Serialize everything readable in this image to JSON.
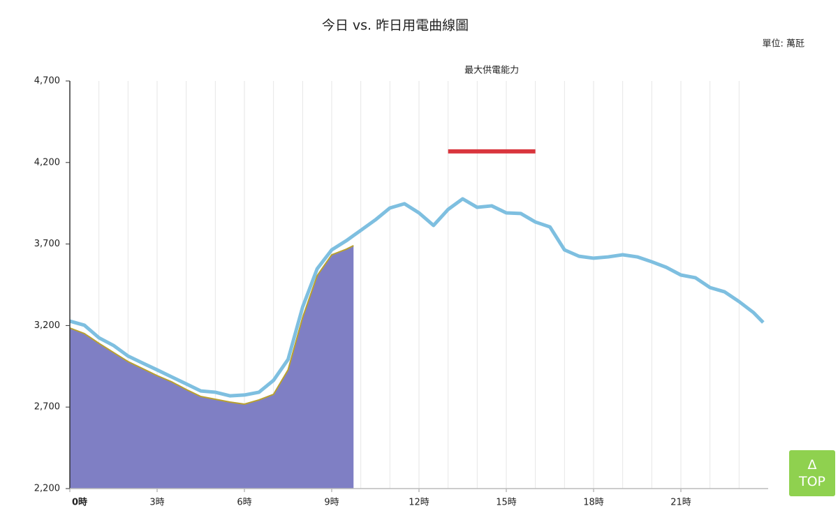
{
  "chart_data": {
    "type": "line",
    "title": "今日 vs. 昨日用電曲線圖",
    "unit_label": "單位: 萬瓩",
    "xlim": [
      0,
      24
    ],
    "ylim": [
      2200,
      4700
    ],
    "xticks": [
      {
        "value": 0,
        "label": "0時"
      },
      {
        "value": 3,
        "label": "3時"
      },
      {
        "value": 6,
        "label": "6時"
      },
      {
        "value": 9,
        "label": "9時"
      },
      {
        "value": 12,
        "label": "12時"
      },
      {
        "value": 15,
        "label": "15時"
      },
      {
        "value": 18,
        "label": "18時"
      },
      {
        "value": 21,
        "label": "21時"
      }
    ],
    "yticks": [
      {
        "value": 2200,
        "label": "2,200"
      },
      {
        "value": 2700,
        "label": "2,700"
      },
      {
        "value": 3200,
        "label": "3,200"
      },
      {
        "value": 3700,
        "label": "3,700"
      },
      {
        "value": 4200,
        "label": "4,200"
      },
      {
        "value": 4700,
        "label": "4,700"
      }
    ],
    "series": [
      {
        "color": "#7ebfe0",
        "x": [
          0,
          0.5,
          1,
          1.5,
          2,
          2.5,
          3,
          3.5,
          4,
          4.5,
          5,
          5.5,
          6,
          6.5,
          7,
          7.5,
          8,
          8.5,
          9,
          9.5,
          10,
          10.5,
          11,
          11.5,
          12,
          12.5,
          13,
          13.5,
          14,
          14.5,
          15,
          15.5,
          16,
          16.5,
          17,
          17.5,
          18,
          18.5,
          19,
          19.5,
          20,
          20.5,
          21,
          21.5,
          22,
          22.5,
          23,
          23.5,
          23.83
        ],
        "values": [
          3227,
          3202,
          3125,
          3078,
          3013,
          2970,
          2928,
          2885,
          2842,
          2799,
          2791,
          2769,
          2774,
          2791,
          2864,
          2992,
          3313,
          3548,
          3664,
          3720,
          3784,
          3848,
          3921,
          3947,
          3891,
          3814,
          3912,
          3977,
          3925,
          3934,
          3891,
          3887,
          3835,
          3805,
          3664,
          3625,
          3613,
          3621,
          3634,
          3621,
          3591,
          3557,
          3510,
          3493,
          3433,
          3407,
          3347,
          3279,
          3219
        ]
      },
      {
        "color": "#7f7fc4",
        "edge_color": "#b8a030",
        "fill": true,
        "x": [
          0,
          0.5,
          1,
          1.5,
          2,
          2.5,
          3,
          3.5,
          4,
          4.5,
          5,
          5.5,
          6,
          6.5,
          7,
          7.5,
          8,
          8.5,
          9,
          9.5,
          9.75
        ],
        "values": [
          3185,
          3151,
          3091,
          3035,
          2979,
          2936,
          2893,
          2855,
          2808,
          2765,
          2748,
          2731,
          2718,
          2744,
          2778,
          2928,
          3249,
          3506,
          3634,
          3668,
          3690
        ]
      }
    ],
    "annotation": {
      "text": "最大供電能力",
      "value": 4268,
      "x_range": [
        13,
        16
      ],
      "color": "#d9363e"
    }
  },
  "button": {
    "icon": "Δ",
    "label": "TOP"
  }
}
